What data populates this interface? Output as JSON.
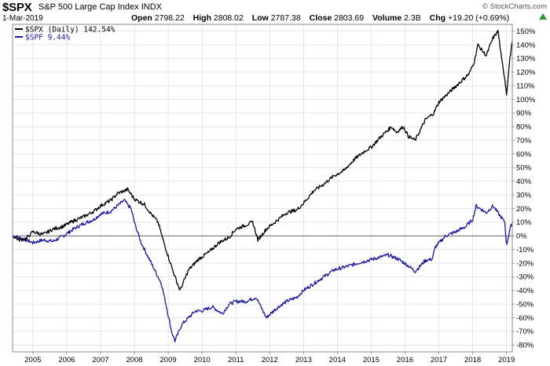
{
  "header": {
    "symbol": "$SPX",
    "name": "S&P 500 Large Cap Index",
    "exchange": "INDX",
    "date": "1-Mar-2019",
    "open_label": "Open",
    "open": "2798.22",
    "high_label": "High",
    "high": "2808.02",
    "low_label": "Low",
    "low": "2787.38",
    "close_label": "Close",
    "close": "2803.69",
    "volume_label": "Volume",
    "volume": "2.3B",
    "chg_label": "Chg",
    "chg": "+19.20 (+0.69%)",
    "watermark": "© StockCharts.com"
  },
  "colors": {
    "spx": "#000000",
    "spf": "#1a1a9c",
    "grid": "#d9d9d9",
    "zero": "#555555",
    "up": "#2a9a2a"
  },
  "chart_data": {
    "type": "line",
    "title": "$SPX S&P 500 Large Cap Index INDX",
    "ylabel": "",
    "xlabel": "",
    "ylim": [
      -85,
      155
    ],
    "xlim": [
      2004.4,
      2019.17
    ],
    "yticks": [
      -80,
      -70,
      -60,
      -50,
      -40,
      -30,
      -20,
      -10,
      0,
      10,
      20,
      30,
      40,
      50,
      60,
      70,
      80,
      90,
      100,
      110,
      120,
      130,
      140,
      150
    ],
    "ytick_labels": [
      "-80%",
      "-70%",
      "-60%",
      "-50%",
      "-40%",
      "-30%",
      "-20%",
      "-10%",
      "0%",
      "10%",
      "20%",
      "30%",
      "40%",
      "50%",
      "60%",
      "70%",
      "80%",
      "90%",
      "100%",
      "110%",
      "120%",
      "130%",
      "140%",
      "150%"
    ],
    "xticks": [
      2005,
      2006,
      2007,
      2008,
      2009,
      2010,
      2011,
      2012,
      2013,
      2014,
      2015,
      2016,
      2017,
      2018,
      2019
    ],
    "xtick_labels": [
      "2005",
      "2006",
      "2007",
      "2008",
      "2009",
      "2010",
      "2011",
      "2012",
      "2013",
      "2014",
      "2015",
      "2016",
      "2017",
      "2018",
      "2019"
    ],
    "legend": [
      {
        "label": "$SPX (Daily) 142.54%",
        "series": "spx"
      },
      {
        "label": "$SPF 9.44%",
        "series": "spf"
      }
    ],
    "series": [
      {
        "name": "$SPX (Daily)",
        "key": "spx",
        "final_label": "142.54%",
        "x": [
          2004.4,
          2004.6,
          2004.8,
          2005.0,
          2005.3,
          2005.6,
          2005.9,
          2006.2,
          2006.5,
          2006.8,
          2007.0,
          2007.3,
          2007.5,
          2007.8,
          2008.0,
          2008.3,
          2008.5,
          2008.7,
          2008.85,
          2009.0,
          2009.2,
          2009.35,
          2009.6,
          2009.9,
          2010.2,
          2010.5,
          2010.8,
          2011.0,
          2011.3,
          2011.5,
          2011.65,
          2011.9,
          2012.2,
          2012.5,
          2012.8,
          2013.0,
          2013.3,
          2013.6,
          2013.9,
          2014.2,
          2014.5,
          2014.8,
          2015.0,
          2015.3,
          2015.6,
          2015.75,
          2015.95,
          2016.1,
          2016.3,
          2016.6,
          2016.85,
          2017.0,
          2017.3,
          2017.6,
          2017.9,
          2018.05,
          2018.15,
          2018.4,
          2018.6,
          2018.75,
          2018.85,
          2018.95,
          2019.0,
          2019.1,
          2019.17
        ],
        "y": [
          0,
          -3,
          -2,
          3,
          1,
          5,
          7,
          11,
          14,
          18,
          22,
          26,
          31,
          34,
          27,
          23,
          16,
          10,
          -3,
          -15,
          -30,
          -40,
          -25,
          -17,
          -12,
          -5,
          -1,
          5,
          8,
          10,
          -3,
          5,
          11,
          17,
          19,
          24,
          33,
          38,
          44,
          48,
          56,
          62,
          65,
          73,
          80,
          76,
          80,
          73,
          70,
          85,
          90,
          98,
          105,
          112,
          119,
          128,
          140,
          132,
          145,
          150,
          130,
          115,
          104,
          130,
          142.54
        ]
      },
      {
        "name": "$SPF",
        "key": "spf",
        "final_label": "9.44%",
        "x": [
          2004.4,
          2004.7,
          2005.0,
          2005.3,
          2005.6,
          2005.9,
          2006.2,
          2006.5,
          2006.8,
          2007.0,
          2007.3,
          2007.5,
          2007.7,
          2007.9,
          2008.0,
          2008.2,
          2008.4,
          2008.6,
          2008.8,
          2008.95,
          2009.1,
          2009.2,
          2009.4,
          2009.6,
          2009.8,
          2010.0,
          2010.3,
          2010.6,
          2010.8,
          2011.0,
          2011.3,
          2011.6,
          2011.8,
          2011.9,
          2012.2,
          2012.5,
          2012.8,
          2013.0,
          2013.3,
          2013.6,
          2013.9,
          2014.2,
          2014.6,
          2014.9,
          2015.2,
          2015.5,
          2015.8,
          2016.1,
          2016.3,
          2016.6,
          2016.8,
          2016.9,
          2017.2,
          2017.5,
          2017.8,
          2018.0,
          2018.1,
          2018.4,
          2018.6,
          2018.8,
          2018.95,
          2019.0,
          2019.1,
          2019.17
        ],
        "y": [
          0,
          -2,
          -5,
          -3,
          -4,
          0,
          5,
          9,
          12,
          16,
          18,
          22,
          26,
          20,
          10,
          -5,
          -15,
          -25,
          -35,
          -52,
          -70,
          -77,
          -65,
          -60,
          -55,
          -55,
          -52,
          -57,
          -50,
          -48,
          -48,
          -45,
          -55,
          -60,
          -53,
          -48,
          -45,
          -40,
          -35,
          -30,
          -25,
          -23,
          -20,
          -18,
          -16,
          -14,
          -17,
          -22,
          -26,
          -18,
          -17,
          -8,
          0,
          3,
          7,
          12,
          22,
          17,
          22,
          15,
          10,
          -7,
          5,
          9.44
        ]
      }
    ]
  }
}
